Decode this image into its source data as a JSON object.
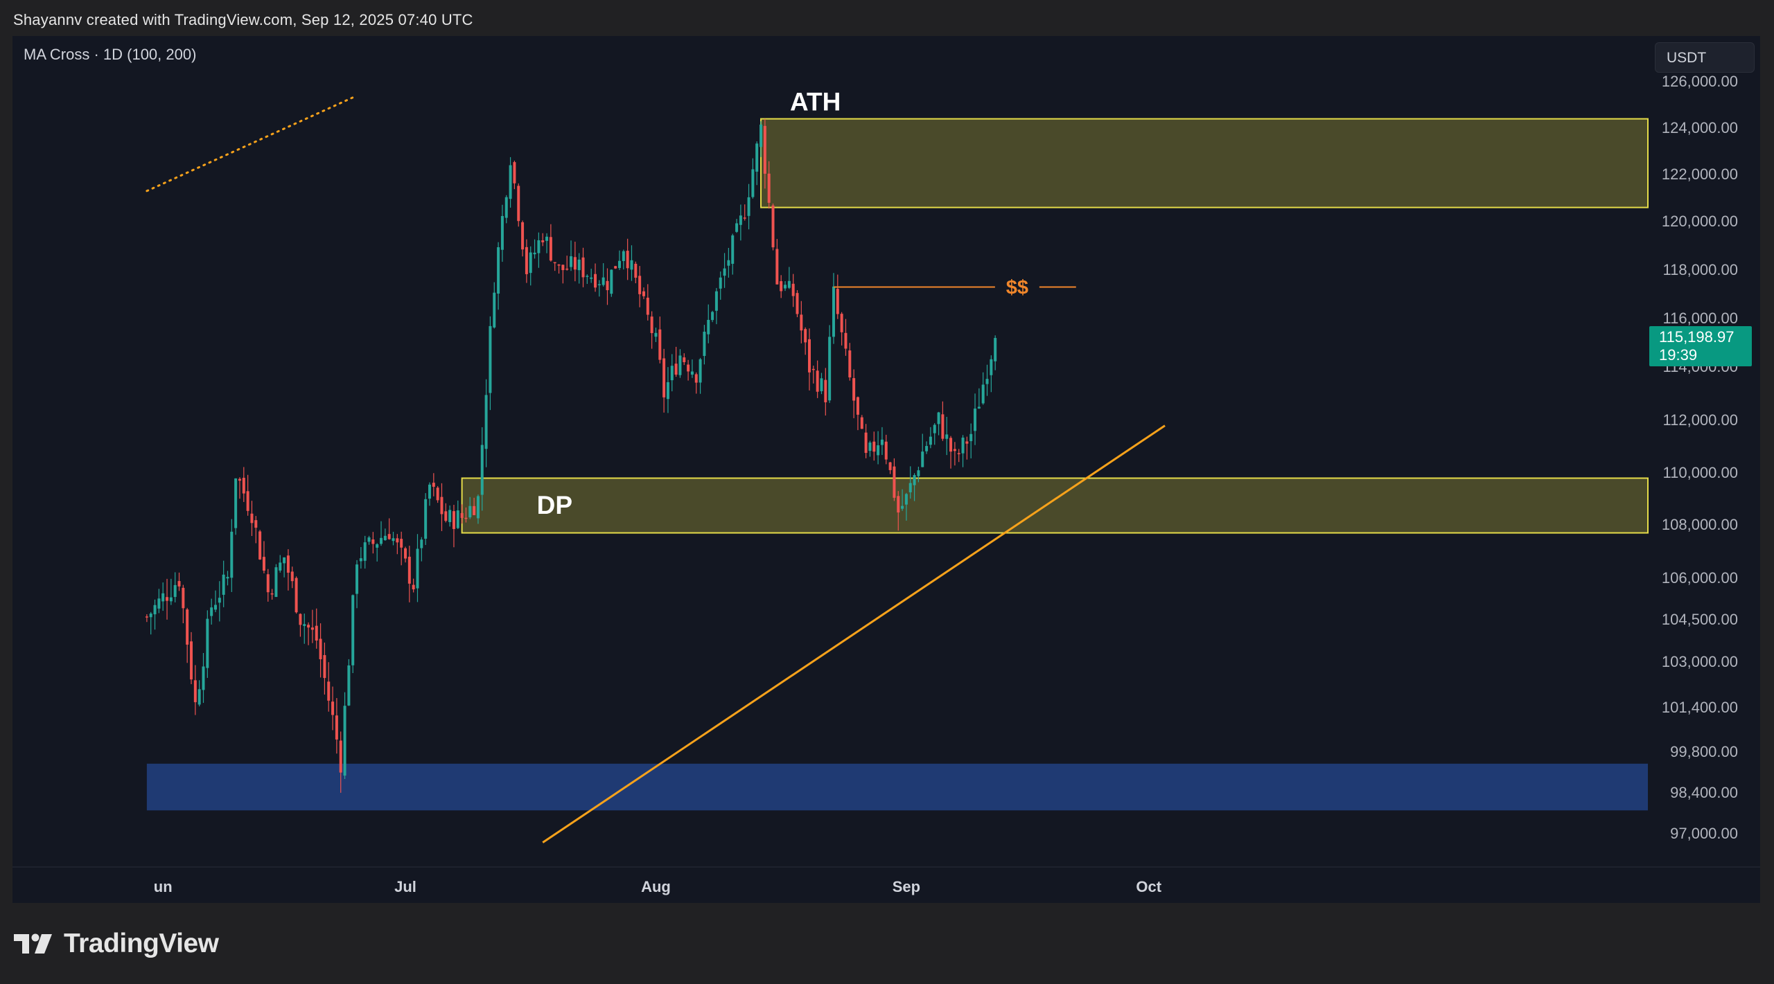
{
  "header": {
    "credit": "Shayannv created with TradingView.com, Sep 12, 2025 07:40 UTC"
  },
  "legend": {
    "indicator": "MA Cross · 1D (100, 200)"
  },
  "toolbar": {
    "currency": "USDT"
  },
  "price_tag": {
    "price": "115,198.97",
    "countdown": "19:39",
    "color": "#089981"
  },
  "footer": {
    "brand": "TradingView"
  },
  "colors": {
    "background": "#131722",
    "zone_fill": "#4a4a2a",
    "zone_border": "#e5dc49",
    "support_zone": "#1f3a73",
    "trendline": "#f7a21b",
    "up_candle": "#26a69a",
    "down_candle": "#ef5350",
    "label_orange": "#f0862b"
  },
  "chart_data": {
    "type": "candlestick",
    "symbol_interval": "1D",
    "y_axis_ticks": [
      126000,
      124000,
      122000,
      120000,
      118000,
      116000,
      114000,
      112000,
      110000,
      108000,
      106000,
      104500,
      103000,
      101400,
      99800,
      98400,
      97000
    ],
    "y_axis_tick_labels": [
      "126,000.00",
      "124,000.00",
      "122,000.00",
      "120,000.00",
      "118,000.00",
      "116,000.00",
      "114,000.00",
      "112,000.00",
      "110,000.00",
      "108,000.00",
      "106,000.00",
      "104,500.00",
      "103,000.00",
      "101,400.00",
      "99,800.00",
      "98,400.00",
      "97,000.00"
    ],
    "x_axis_ticks": [
      "Jun",
      "Jul",
      "Aug",
      "Sep",
      "Oct"
    ],
    "x_axis_tick_labels": [
      "un",
      "Jul",
      "Aug",
      "Sep",
      "Oct"
    ],
    "x_axis_tick_dates": [
      "2025-06-01",
      "2025-07-01",
      "2025-08-01",
      "2025-09-01",
      "2025-10-01"
    ],
    "date_range": [
      "2025-05-30",
      "2025-10-03"
    ],
    "last_price": 115198.97,
    "price_path": [
      [
        "2025-05-30",
        104600
      ],
      [
        "2025-06-03",
        106000
      ],
      [
        "2025-06-05",
        101500
      ],
      [
        "2025-06-07",
        105000
      ],
      [
        "2025-06-09",
        106000
      ],
      [
        "2025-06-10",
        110000
      ],
      [
        "2025-06-12",
        108500
      ],
      [
        "2025-06-14",
        105500
      ],
      [
        "2025-06-16",
        106800
      ],
      [
        "2025-06-18",
        104600
      ],
      [
        "2025-06-20",
        103800
      ],
      [
        "2025-06-22",
        101000
      ],
      [
        "2025-06-23",
        99500
      ],
      [
        "2025-06-25",
        106800
      ],
      [
        "2025-06-27",
        107300
      ],
      [
        "2025-06-29",
        107800
      ],
      [
        "2025-07-02",
        105800
      ],
      [
        "2025-07-04",
        109500
      ],
      [
        "2025-07-06",
        108200
      ],
      [
        "2025-07-08",
        108300
      ],
      [
        "2025-07-10",
        109000
      ],
      [
        "2025-07-12",
        117500
      ],
      [
        "2025-07-14",
        122800
      ],
      [
        "2025-07-16",
        118000
      ],
      [
        "2025-07-18",
        119500
      ],
      [
        "2025-07-20",
        118000
      ],
      [
        "2025-07-22",
        118200
      ],
      [
        "2025-07-24",
        117800
      ],
      [
        "2025-07-26",
        117500
      ],
      [
        "2025-07-28",
        119000
      ],
      [
        "2025-07-30",
        117000
      ],
      [
        "2025-08-01",
        115000
      ],
      [
        "2025-08-02",
        113000
      ],
      [
        "2025-08-04",
        114500
      ],
      [
        "2025-08-06",
        113800
      ],
      [
        "2025-08-08",
        116500
      ],
      [
        "2025-08-10",
        118500
      ],
      [
        "2025-08-12",
        120500
      ],
      [
        "2025-08-14",
        124000
      ],
      [
        "2025-08-16",
        117500
      ],
      [
        "2025-08-18",
        117000
      ],
      [
        "2025-08-20",
        114000
      ],
      [
        "2025-08-22",
        113000
      ],
      [
        "2025-08-23",
        117000
      ],
      [
        "2025-08-25",
        113500
      ],
      [
        "2025-08-27",
        110500
      ],
      [
        "2025-08-29",
        111500
      ],
      [
        "2025-08-31",
        108500
      ],
      [
        "2025-09-01",
        109000
      ],
      [
        "2025-09-03",
        110800
      ],
      [
        "2025-09-05",
        112000
      ],
      [
        "2025-09-07",
        110500
      ],
      [
        "2025-09-09",
        111500
      ],
      [
        "2025-09-11",
        114000
      ],
      [
        "2025-09-12",
        115199
      ]
    ],
    "annotations": [
      {
        "label": "ATH",
        "type": "zone",
        "price_range": [
          120600,
          124400
        ],
        "start": "2025-08-14",
        "extends_right": true
      },
      {
        "label": "DP",
        "type": "zone",
        "price_range": [
          107700,
          109800
        ],
        "start": "2025-07-08",
        "extends_right": true
      },
      {
        "label": "",
        "type": "zone",
        "price_range": [
          97800,
          99400
        ],
        "start": "2025-05-30",
        "extends_right": true
      },
      {
        "label": "$$",
        "type": "horizontal_level",
        "price": 117300,
        "start": "2025-08-23",
        "end": "2025-09-22"
      },
      {
        "label": "",
        "type": "trendline",
        "from": [
          "2025-07-18",
          96700
        ],
        "to": [
          "2025-10-03",
          111800
        ]
      },
      {
        "label": "",
        "type": "dotted_line",
        "from": [
          "2025-05-30",
          121300
        ],
        "to": [
          "2025-06-25",
          125400
        ]
      }
    ]
  }
}
